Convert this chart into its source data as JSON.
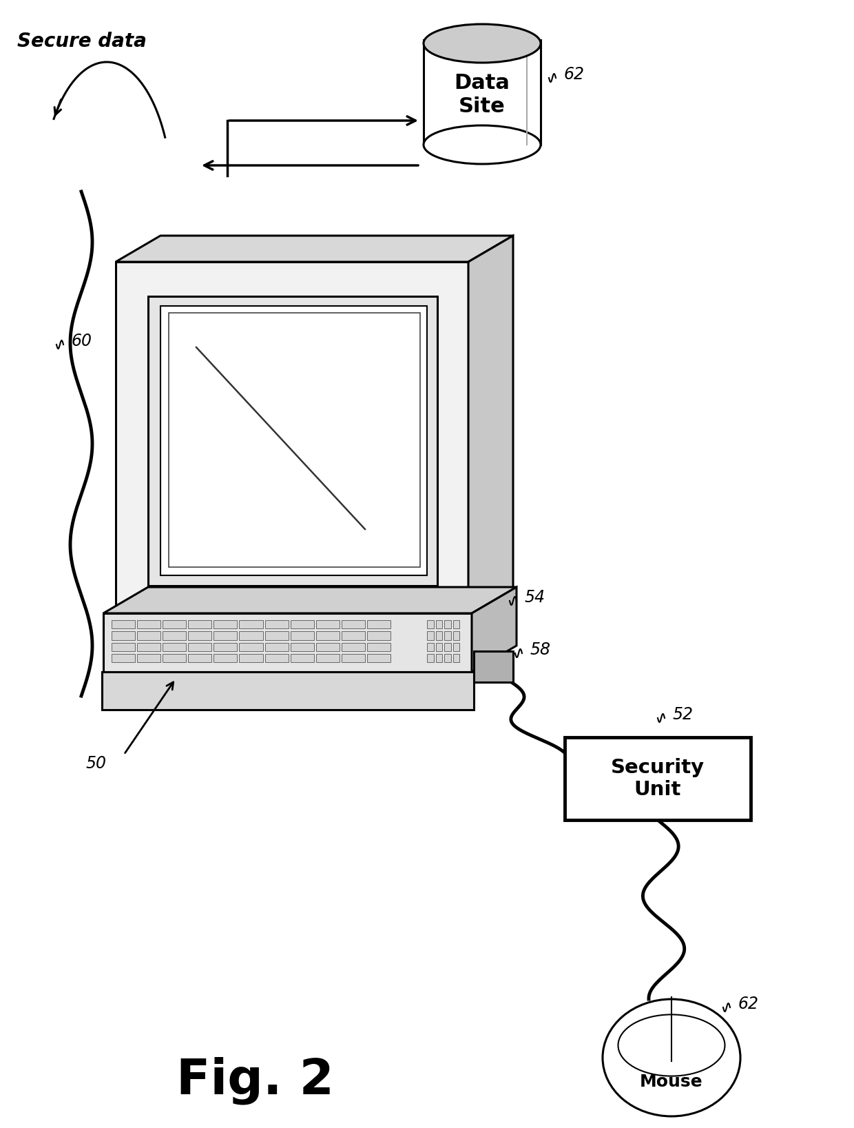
{
  "background_color": "#ffffff",
  "labels": {
    "secure_data": "Secure data",
    "data_site": "Data\nSite",
    "security_unit": "Security\nUnit",
    "mouse": "Mouse",
    "fig": "Fig. 2",
    "ref_60": "60",
    "ref_62_top": "62",
    "ref_62_bottom": "62",
    "ref_52": "52",
    "ref_54": "54",
    "ref_58": "58",
    "ref_50": "50"
  },
  "colors": {
    "black": "#000000",
    "white": "#ffffff",
    "gray_light": "#e8e8e8",
    "gray_med": "#cccccc",
    "gray_dark": "#aaaaaa",
    "bg": "#ffffff"
  }
}
